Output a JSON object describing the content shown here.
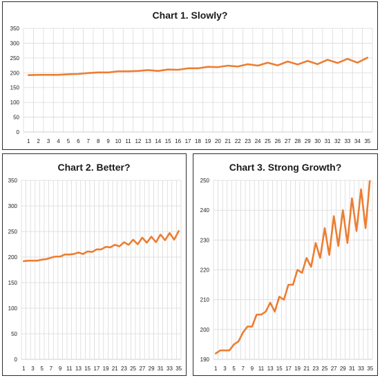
{
  "chart_data": [
    {
      "type": "line",
      "title": "Chart 1. Slowly?",
      "xlabel": "",
      "ylabel": "",
      "ylim": [
        0,
        350
      ],
      "yticks": [
        0,
        50,
        100,
        150,
        200,
        250,
        300,
        350
      ],
      "x": [
        1,
        2,
        3,
        4,
        5,
        6,
        7,
        8,
        9,
        10,
        11,
        12,
        13,
        14,
        15,
        16,
        17,
        18,
        19,
        20,
        21,
        22,
        23,
        24,
        25,
        26,
        27,
        28,
        29,
        30,
        31,
        32,
        33,
        34,
        35
      ],
      "xtick_labels": [
        "1",
        "2",
        "3",
        "4",
        "5",
        "6",
        "7",
        "8",
        "9",
        "10",
        "11",
        "12",
        "13",
        "14",
        "15",
        "16",
        "17",
        "18",
        "19",
        "20",
        "21",
        "22",
        "23",
        "24",
        "25",
        "26",
        "27",
        "28",
        "29",
        "30",
        "31",
        "32",
        "33",
        "34",
        "35"
      ],
      "series": [
        {
          "color": "#ed7d31",
          "values": [
            192,
            193,
            193,
            193,
            195,
            196,
            199,
            201,
            201,
            205,
            205,
            206,
            209,
            206,
            211,
            210,
            215,
            215,
            220,
            219,
            224,
            221,
            229,
            224,
            234,
            225,
            238,
            228,
            240,
            229,
            244,
            233,
            247,
            234,
            251
          ]
        }
      ],
      "grid": true,
      "legend": "none"
    },
    {
      "type": "line",
      "title": "Chart 2. Better?",
      "xlabel": "",
      "ylabel": "",
      "ylim": [
        0,
        350
      ],
      "yticks": [
        0,
        50,
        100,
        150,
        200,
        250,
        300,
        350
      ],
      "x": [
        1,
        2,
        3,
        4,
        5,
        6,
        7,
        8,
        9,
        10,
        11,
        12,
        13,
        14,
        15,
        16,
        17,
        18,
        19,
        20,
        21,
        22,
        23,
        24,
        25,
        26,
        27,
        28,
        29,
        30,
        31,
        32,
        33,
        34,
        35
      ],
      "xtick_labels": [
        "1",
        "3",
        "5",
        "7",
        "9",
        "11",
        "13",
        "15",
        "17",
        "19",
        "21",
        "23",
        "25",
        "27",
        "29",
        "31",
        "33",
        "35"
      ],
      "series": [
        {
          "color": "#ed7d31",
          "values": [
            192,
            193,
            193,
            193,
            195,
            196,
            199,
            201,
            201,
            205,
            205,
            206,
            209,
            206,
            211,
            210,
            215,
            215,
            220,
            219,
            224,
            221,
            229,
            224,
            234,
            225,
            238,
            228,
            240,
            229,
            244,
            233,
            247,
            234,
            251
          ]
        }
      ],
      "grid": true,
      "legend": "none"
    },
    {
      "type": "line",
      "title": "Chart 3. Strong Growth?",
      "xlabel": "",
      "ylabel": "",
      "ylim": [
        190,
        250
      ],
      "yticks": [
        190,
        200,
        210,
        220,
        230,
        240,
        250
      ],
      "x": [
        1,
        2,
        3,
        4,
        5,
        6,
        7,
        8,
        9,
        10,
        11,
        12,
        13,
        14,
        15,
        16,
        17,
        18,
        19,
        20,
        21,
        22,
        23,
        24,
        25,
        26,
        27,
        28,
        29,
        30,
        31,
        32,
        33,
        34,
        35
      ],
      "xtick_labels": [
        "1",
        "3",
        "5",
        "7",
        "9",
        "11",
        "13",
        "15",
        "17",
        "19",
        "21",
        "23",
        "25",
        "27",
        "29",
        "31",
        "33",
        "35"
      ],
      "series": [
        {
          "color": "#ed7d31",
          "values": [
            192,
            193,
            193,
            193,
            195,
            196,
            199,
            201,
            201,
            205,
            205,
            206,
            209,
            206,
            211,
            210,
            215,
            215,
            220,
            219,
            224,
            221,
            229,
            224,
            234,
            225,
            238,
            228,
            240,
            229,
            244,
            233,
            247,
            234,
            251
          ]
        }
      ],
      "grid": true,
      "legend": "none"
    }
  ]
}
